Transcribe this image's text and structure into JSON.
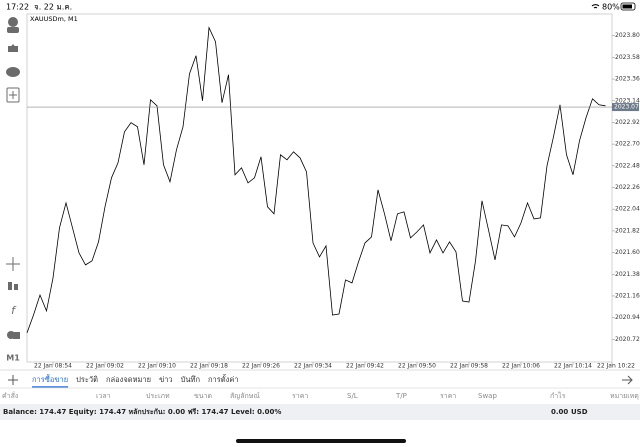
{
  "status_bar": {
    "time": "17:22",
    "date": "จ. 22 ม.ค.",
    "battery": "80%"
  },
  "toolbar": {
    "timeframe": "M1"
  },
  "chart_data": {
    "type": "line",
    "title": "XAUUSDm, M1",
    "color": "#000000",
    "values": [
      2020.785,
      2020.967,
      2021.17,
      2021.008,
      2021.343,
      2021.851,
      2022.104,
      2021.851,
      2021.597,
      2021.475,
      2021.516,
      2021.708,
      2022.064,
      2022.358,
      2022.511,
      2022.825,
      2022.917,
      2022.876,
      2022.49,
      2023.15,
      2023.089,
      2022.49,
      2022.318,
      2022.643,
      2022.876,
      2023.414,
      2023.597,
      2023.14,
      2023.881,
      2023.739,
      2023.12,
      2023.404,
      2022.389,
      2022.46,
      2022.307,
      2022.358,
      2022.571,
      2022.064,
      2021.993,
      2022.592,
      2022.541,
      2022.622,
      2022.561,
      2022.419,
      2021.698,
      2021.556,
      2021.668,
      2020.967,
      2020.977,
      2021.323,
      2021.292,
      2021.505,
      2021.698,
      2021.759,
      2022.236,
      2021.993,
      2021.719,
      2021.993,
      2022.013,
      2021.749,
      2021.81,
      2021.881,
      2021.597,
      2021.729,
      2021.597,
      2021.708,
      2021.607,
      2021.109,
      2021.099,
      2021.516,
      2022.125,
      2021.83,
      2021.526,
      2021.881,
      2021.871,
      2021.759,
      2021.901,
      2022.104,
      2021.942,
      2021.952,
      2022.48,
      2022.775,
      2023.099,
      2022.592,
      2022.389,
      2022.734,
      2022.967,
      2023.16,
      2023.099,
      2023.089
    ],
    "xlim": [
      0,
      90
    ],
    "xticks": [
      {
        "value": 4,
        "label": "22 Jan 08:54"
      },
      {
        "value": 12,
        "label": "22 Jan 09:02"
      },
      {
        "value": 20,
        "label": "22 Jan 09:10"
      },
      {
        "value": 28,
        "label": "22 Jan 09:18"
      },
      {
        "value": 36,
        "label": "22 Jan 09:26"
      },
      {
        "value": 44,
        "label": "22 Jan 09:34"
      },
      {
        "value": 52,
        "label": "22 Jan 09:42"
      },
      {
        "value": 60,
        "label": "22 Jan 09:50"
      },
      {
        "value": 68,
        "label": "22 Jan 09:58"
      },
      {
        "value": 76,
        "label": "22 Jan 10:06"
      },
      {
        "value": 84,
        "label": "22 Jan 10:14"
      },
      {
        "value": 92,
        "label": "22 Jan 10:22"
      }
    ],
    "ylim": [
      2020.49,
      2024.02
    ],
    "yticks": [
      {
        "value": 2023.8,
        "label": "2023.800"
      },
      {
        "value": 2023.58,
        "label": "2023.580"
      },
      {
        "value": 2023.36,
        "label": "2023.360"
      },
      {
        "value": 2023.14,
        "label": "2023.140"
      },
      {
        "value": 2022.92,
        "label": "2022.920"
      },
      {
        "value": 2022.7,
        "label": "2022.700"
      },
      {
        "value": 2022.48,
        "label": "2022.480"
      },
      {
        "value": 2022.26,
        "label": "2022.260"
      },
      {
        "value": 2022.04,
        "label": "2022.040"
      },
      {
        "value": 2021.82,
        "label": "2021.820"
      },
      {
        "value": 2021.6,
        "label": "2021.600"
      },
      {
        "value": 2021.38,
        "label": "2021.380"
      },
      {
        "value": 2021.16,
        "label": "2021.160"
      },
      {
        "value": 2020.94,
        "label": "2020.940"
      },
      {
        "value": 2020.72,
        "label": "2020.720"
      }
    ],
    "current_price": 2023.076
  },
  "tabs": [
    "การซื้อขาย",
    "ประวัติ",
    "กล่องจดหมาย",
    "ข่าว",
    "บันทึก",
    "การตั้งค่า"
  ],
  "columns": [
    "คำสั่ง",
    "เวลา",
    "ประเภท",
    "ขนาด",
    "สัญลักษณ์",
    "ราคา",
    "S/L",
    "T/P",
    "ราคา",
    "Swap",
    "กำไร",
    "หมายเหตุ"
  ],
  "account": {
    "summary": "Balance: 174.47 Equity: 174.47 หลักประกัน: 0.00 ฟรี: 174.47 Level: 0.00%",
    "profit": "0.00",
    "currency": "USD"
  }
}
